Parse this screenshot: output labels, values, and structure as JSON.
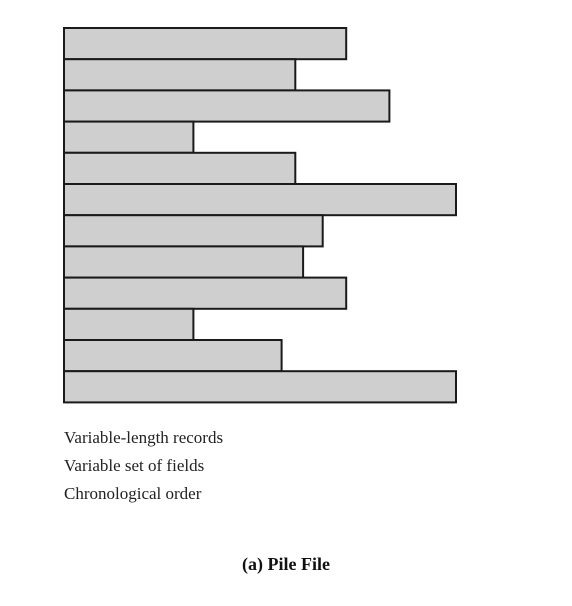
{
  "diagram": {
    "records": [
      {
        "length": 0.72
      },
      {
        "length": 0.59
      },
      {
        "length": 0.83
      },
      {
        "length": 0.33
      },
      {
        "length": 0.59
      },
      {
        "length": 1.0
      },
      {
        "length": 0.66
      },
      {
        "length": 0.61
      },
      {
        "length": 0.72
      },
      {
        "length": 0.33
      },
      {
        "length": 0.555
      },
      {
        "length": 1.0
      }
    ],
    "fill_color": "#cfcfcf",
    "stroke_color": "#1a1a1a"
  },
  "caption": {
    "lines": [
      "Variable-length records",
      "Variable set of fields",
      "Chronological order"
    ]
  },
  "title": "(a) Pile File"
}
